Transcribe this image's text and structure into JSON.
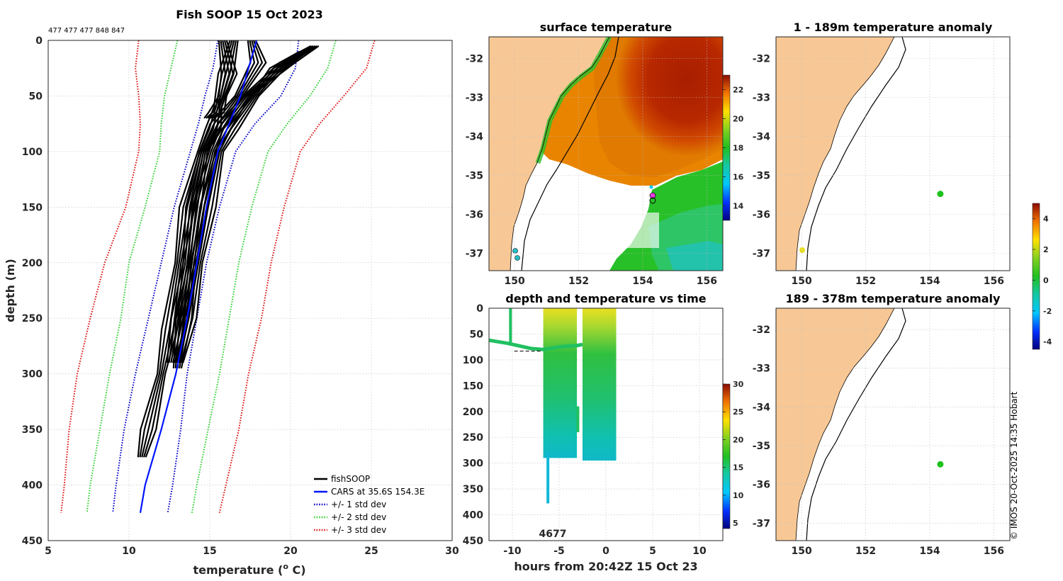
{
  "colors": {
    "fish": "#000000",
    "cars": "#0014ff",
    "sd1": "#0000c8",
    "sd2": "#2ed12e",
    "sd3": "#e01010",
    "land": "#f7c896",
    "dot": "#1ec21e",
    "coast": "#000000"
  },
  "copyright": "© IMOS 20-Oct-2025 14:35 Hobart",
  "chart_data": [
    {
      "id": "profile",
      "type": "line",
      "title": "Fish SOOP 15 Oct 2023",
      "header_note": "477 477 477 848 847",
      "xlabel": "temperature (",
      "xlabel_sup": "o",
      "xlabel_tail": " C)",
      "ylabel": "depth (m)",
      "xlim": [
        5,
        30
      ],
      "ylim": [
        450,
        0
      ],
      "xticks": [
        5,
        10,
        15,
        20,
        25,
        30
      ],
      "yticks": [
        0,
        50,
        100,
        150,
        200,
        250,
        300,
        350,
        400,
        450
      ],
      "legend": [
        "fishSOOP",
        "CARS at 35.6S 154.3E",
        "+/- 1 std dev",
        "+/- 2 std dev",
        "+/- 3 std dev"
      ],
      "legend_position": "bottom-right",
      "series": [
        {
          "name": "CARS at 35.6S 154.3E",
          "depth": [
            0,
            50,
            100,
            150,
            200,
            250,
            300,
            350,
            400,
            425
          ],
          "temp": [
            17.9,
            16.9,
            15.5,
            14.8,
            14.2,
            13.6,
            12.9,
            12.0,
            11.0,
            10.7
          ]
        },
        {
          "name": "-1 sd",
          "depth": [
            0,
            25,
            50,
            75,
            100,
            150,
            200,
            250,
            300,
            350,
            400,
            425
          ],
          "temp": [
            15.5,
            15.2,
            14.7,
            14.3,
            13.8,
            12.8,
            12.0,
            11.2,
            10.4,
            9.7,
            9.2,
            9.0
          ]
        },
        {
          "name": "+1 sd",
          "depth": [
            0,
            25,
            50,
            75,
            100,
            150,
            200,
            250,
            300,
            350,
            400,
            425
          ],
          "temp": [
            20.5,
            20.3,
            19.4,
            17.8,
            16.6,
            15.6,
            14.8,
            14.2,
            13.6,
            13.2,
            12.7,
            12.4
          ]
        },
        {
          "name": "-2 sd",
          "depth": [
            0,
            25,
            50,
            75,
            100,
            150,
            200,
            250,
            300,
            350,
            400,
            425
          ],
          "temp": [
            13.0,
            12.6,
            12.2,
            12.0,
            11.9,
            11.0,
            10.0,
            9.5,
            8.8,
            8.2,
            7.6,
            7.4
          ]
        },
        {
          "name": "+2 sd",
          "depth": [
            0,
            25,
            50,
            75,
            100,
            150,
            200,
            250,
            300,
            350,
            400,
            425
          ],
          "temp": [
            22.8,
            22.3,
            21.2,
            19.8,
            18.6,
            17.6,
            16.8,
            16.2,
            15.6,
            14.9,
            14.2,
            13.9
          ]
        },
        {
          "name": "-3 sd",
          "depth": [
            0,
            25,
            50,
            75,
            100,
            150,
            200,
            250,
            300,
            350,
            400,
            425
          ],
          "temp": [
            10.6,
            10.4,
            10.6,
            10.7,
            10.6,
            9.8,
            8.5,
            7.6,
            6.8,
            6.3,
            6.0,
            5.8
          ]
        },
        {
          "name": "+3 sd",
          "depth": [
            0,
            25,
            50,
            75,
            100,
            150,
            200,
            250,
            300,
            350,
            400,
            425
          ],
          "temp": [
            25.2,
            24.7,
            23.3,
            21.8,
            20.6,
            19.6,
            18.8,
            18.2,
            17.4,
            16.8,
            16.0,
            15.6
          ]
        },
        {
          "name": "fishSOOP",
          "depth": [
            0,
            20,
            50,
            75,
            100,
            150,
            200,
            250,
            290
          ],
          "temp": [
            17.6,
            18.0,
            16.8,
            15.5,
            14.6,
            14.0,
            13.6,
            13.1,
            12.6
          ]
        },
        {
          "name": "fishSOOP 2",
          "depth": [
            5,
            20,
            50,
            75,
            100,
            150,
            200,
            250,
            295
          ],
          "temp": [
            21.5,
            19.8,
            17.3,
            16.0,
            15.2,
            14.4,
            13.9,
            13.4,
            13.0
          ]
        },
        {
          "name": "fishSOOP 3",
          "depth": [
            0,
            30,
            60,
            80,
            100,
            150,
            200,
            260,
            300,
            350,
            375
          ],
          "temp": [
            16.5,
            16.0,
            15.5,
            15.2,
            14.5,
            13.6,
            13.1,
            12.5,
            12.0,
            11.2,
            10.8
          ]
        },
        {
          "name": "fishSOOP 4",
          "depth": [
            0,
            30,
            50,
            65,
            70
          ],
          "temp": [
            15.8,
            16.2,
            15.8,
            15.4,
            14.9
          ]
        },
        {
          "name": "fishSOOP 5",
          "depth": [
            10,
            25,
            50,
            80,
            100,
            150,
            200,
            250,
            290
          ],
          "temp": [
            20.8,
            19.2,
            17.8,
            16.3,
            15.6,
            14.9,
            14.3,
            13.7,
            13.1
          ]
        }
      ]
    },
    {
      "id": "sst_map",
      "type": "heatmap",
      "title": "surface temperature",
      "xticks": [
        150,
        152,
        154,
        156
      ],
      "yticks": [
        -32,
        -33,
        -34,
        -35,
        -36,
        -37
      ],
      "xlim": [
        149.2,
        156.5
      ],
      "ylim": [
        -37.45,
        -31.45
      ],
      "colorbar_ticks": [
        14,
        16,
        18,
        20,
        22
      ],
      "colorbar_range": [
        13,
        23
      ]
    },
    {
      "id": "time_section",
      "type": "scatter",
      "title": "depth and temperature vs time",
      "xlabel": "hours from 20:42Z 15 Oct 23",
      "xlim": [
        -12.5,
        12.5
      ],
      "ylim": [
        450,
        0
      ],
      "xticks": [
        -10,
        -5,
        0,
        5,
        10
      ],
      "yticks": [
        0,
        50,
        100,
        150,
        200,
        250,
        300,
        350,
        400,
        450
      ],
      "annotation": "4677",
      "colorbar_ticks": [
        5,
        10,
        15,
        20,
        25,
        30
      ],
      "colorbar_range": [
        4,
        30
      ],
      "bands": [
        {
          "x0": -6.7,
          "x1": -3.1,
          "bottom": 290,
          "surface_temp": 19
        },
        {
          "x0": -2.5,
          "x1": 1.1,
          "bottom": 295,
          "surface_temp": 19
        }
      ]
    },
    {
      "id": "anom_upper",
      "type": "scatter",
      "title": "1 - 189m temperature anomaly",
      "xticks": [
        150,
        152,
        154,
        156
      ],
      "yticks": [
        -32,
        -33,
        -34,
        -35,
        -36,
        -37
      ],
      "xlim": [
        149.2,
        156.5
      ],
      "ylim": [
        -37.45,
        -31.45
      ],
      "points": [
        {
          "lon": 154.33,
          "lat": -35.48,
          "anomaly": 0.3
        }
      ]
    },
    {
      "id": "anom_lower",
      "type": "scatter",
      "title": "189 - 378m temperature anomaly",
      "xticks": [
        150,
        152,
        154,
        156
      ],
      "yticks": [
        -32,
        -33,
        -34,
        -35,
        -36,
        -37
      ],
      "xlim": [
        149.2,
        156.5
      ],
      "ylim": [
        -37.45,
        -31.45
      ],
      "points": [
        {
          "lon": 154.33,
          "lat": -35.48,
          "anomaly": 0.3
        }
      ],
      "colorbar_ticks": [
        4,
        2,
        0,
        -2,
        -4
      ],
      "colorbar_range": [
        -4.5,
        5
      ]
    }
  ]
}
